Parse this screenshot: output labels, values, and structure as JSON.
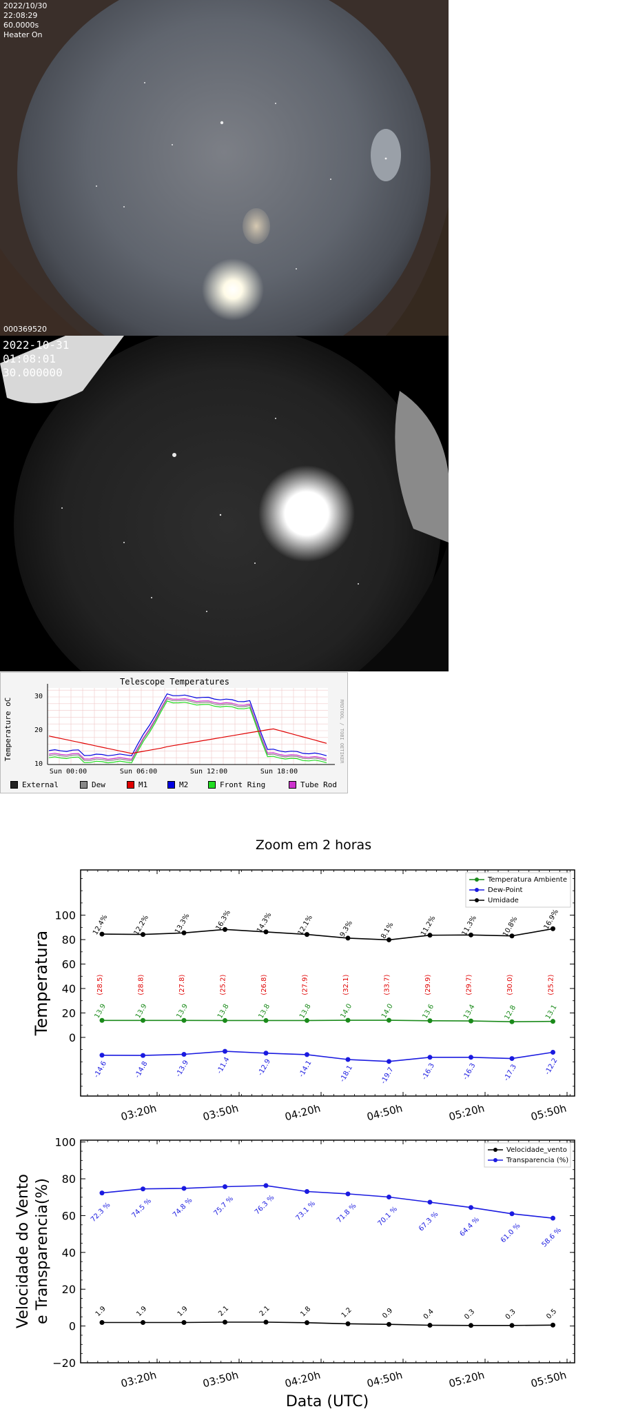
{
  "camera1": {
    "date": "2022/10/30",
    "time": "22:08:29",
    "exposure": "60.0000s",
    "heater": "Heater On",
    "frame_id": "000369520"
  },
  "camera2": {
    "date": "2022-10-31",
    "time": "01:08:01",
    "exposure": "30.000000"
  },
  "telescope_chart": {
    "title": "Telescope Temperatures",
    "ylabel": "Temperature oC",
    "side_text": "RRDTOOL / TOBI OETIKER",
    "yticks": [
      "10",
      "20",
      "30"
    ],
    "xticks": [
      "Sun 00:00",
      "Sun 06:00",
      "Sun 12:00",
      "Sun 18:00"
    ],
    "legend": [
      {
        "label": "External",
        "color": "#222222"
      },
      {
        "label": "Dew",
        "color": "#888888"
      },
      {
        "label": "M1",
        "color": "#e00000"
      },
      {
        "label": "M2",
        "color": "#0000e0"
      },
      {
        "label": "Front Ring",
        "color": "#22dd22"
      },
      {
        "label": "Tube Rod",
        "color": "#cc33cc"
      }
    ]
  },
  "zoom_title": "Zoom em 2 horas",
  "chart_data": [
    {
      "type": "line",
      "ylabel": "Temperatura",
      "yticks": [
        "0",
        "20",
        "40",
        "60",
        "80",
        "100"
      ],
      "xticks": [
        "03:20h",
        "03:50h",
        "04:20h",
        "04:50h",
        "05:20h",
        "05:50h"
      ],
      "ylim": [
        -48,
        137
      ],
      "series": [
        {
          "name": "Temperatura Ambiente",
          "color": "#1a8a1a",
          "values": [
            13.9,
            13.9,
            13.9,
            13.8,
            13.8,
            13.8,
            14.0,
            14.0,
            13.6,
            13.4,
            12.8,
            13.1
          ],
          "labels": [
            "13.9",
            "13.9",
            "13.9",
            "13.8",
            "13.8",
            "13.8",
            "14.0",
            "14.0",
            "13.6",
            "13.4",
            "12.8",
            "13.1"
          ]
        },
        {
          "name": "Dew-Point",
          "color": "#1a1ae0",
          "values": [
            -14.6,
            -14.8,
            -13.9,
            -11.4,
            -12.9,
            -14.1,
            -18.1,
            -19.7,
            -16.3,
            -16.3,
            -17.3,
            -12.2
          ],
          "labels": [
            "-14.6",
            "-14.8",
            "-13.9",
            "-11.4",
            "-12.9",
            "-14.1",
            "-18.1",
            "-19.7",
            "-16.3",
            "-16.3",
            "-17.3",
            "-12.2"
          ]
        },
        {
          "name": "Umidade",
          "color": "#000000",
          "values": [
            84.5,
            84.2,
            85.5,
            88.3,
            86.3,
            84.2,
            81.2,
            79.8,
            83.6,
            83.8,
            83.0,
            88.9
          ],
          "labels": [
            "12.4%",
            "12.2%",
            "13.3%",
            "16.3%",
            "14.3%",
            "12.1%",
            "9.3%",
            "8.1%",
            "11.2%",
            "11.3%",
            "10.8%",
            "16.9%"
          ]
        }
      ],
      "extra_labels": {
        "color": "#e00000",
        "y_value": 43,
        "labels": [
          "(28.5)",
          "(28.8)",
          "(27.8)",
          "(25.2)",
          "(26.8)",
          "(27.9)",
          "(32.1)",
          "(33.7)",
          "(29.9)",
          "(29.7)",
          "(30.0)",
          "(25.2)"
        ]
      }
    },
    {
      "type": "line",
      "xlabel": "Data (UTC)",
      "ylabel_lines": [
        "Velocidade do Vento",
        "e Transparencia(%)"
      ],
      "yticks": [
        "−20",
        "0",
        "20",
        "40",
        "60",
        "80",
        "100"
      ],
      "xticks": [
        "03:20h",
        "03:50h",
        "04:20h",
        "04:50h",
        "05:20h",
        "05:50h"
      ],
      "ylim": [
        -20,
        101
      ],
      "series": [
        {
          "name": "Velocidade_vento",
          "color": "#000000",
          "values": [
            1.9,
            1.9,
            1.9,
            2.1,
            2.1,
            1.8,
            1.2,
            0.9,
            0.4,
            0.3,
            0.3,
            0.5
          ],
          "labels": [
            "1.9",
            "1.9",
            "1.9",
            "2.1",
            "2.1",
            "1.8",
            "1.2",
            "0.9",
            "0.4",
            "0.3",
            "0.3",
            "0.5"
          ]
        },
        {
          "name": "Transparencia (%)",
          "color": "#1a1ae0",
          "values": [
            72.3,
            74.5,
            74.8,
            75.7,
            76.3,
            73.1,
            71.8,
            70.1,
            67.3,
            64.4,
            61.0,
            58.6
          ],
          "labels": [
            "72.3 %",
            "74.5 %",
            "74.8 %",
            "75.7 %",
            "76.3 %",
            "73.1 %",
            "71.8 %",
            "70.1 %",
            "67.3 %",
            "64.4 %",
            "61.0 %",
            "58.6 %"
          ]
        }
      ]
    }
  ]
}
